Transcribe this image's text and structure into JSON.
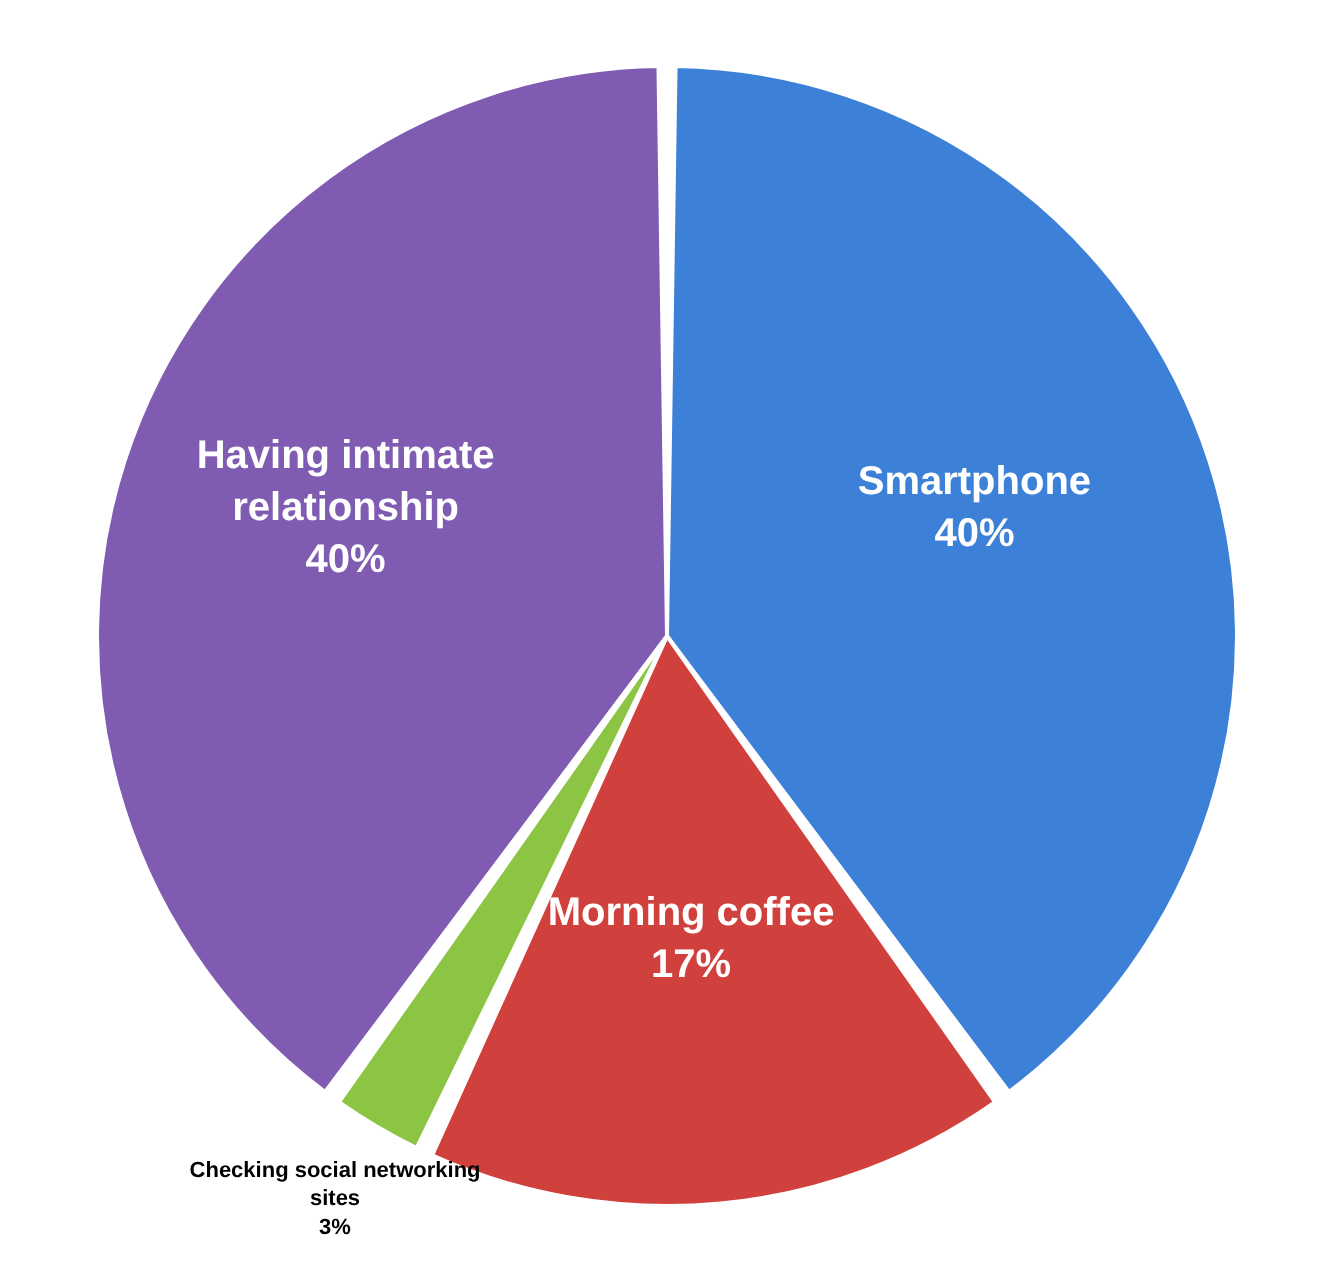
{
  "chart_data": {
    "type": "pie",
    "categories": [
      "Smartphone",
      "Morning coffee",
      "Checking social networking sites",
      "Having intimate relationship"
    ],
    "values": [
      40,
      17,
      3,
      40
    ],
    "colors": [
      "#3d80d8",
      "#d0403c",
      "#8cc443",
      "#7f5cb2"
    ],
    "value_labels": [
      "40%",
      "17%",
      "3%",
      "40%"
    ]
  }
}
